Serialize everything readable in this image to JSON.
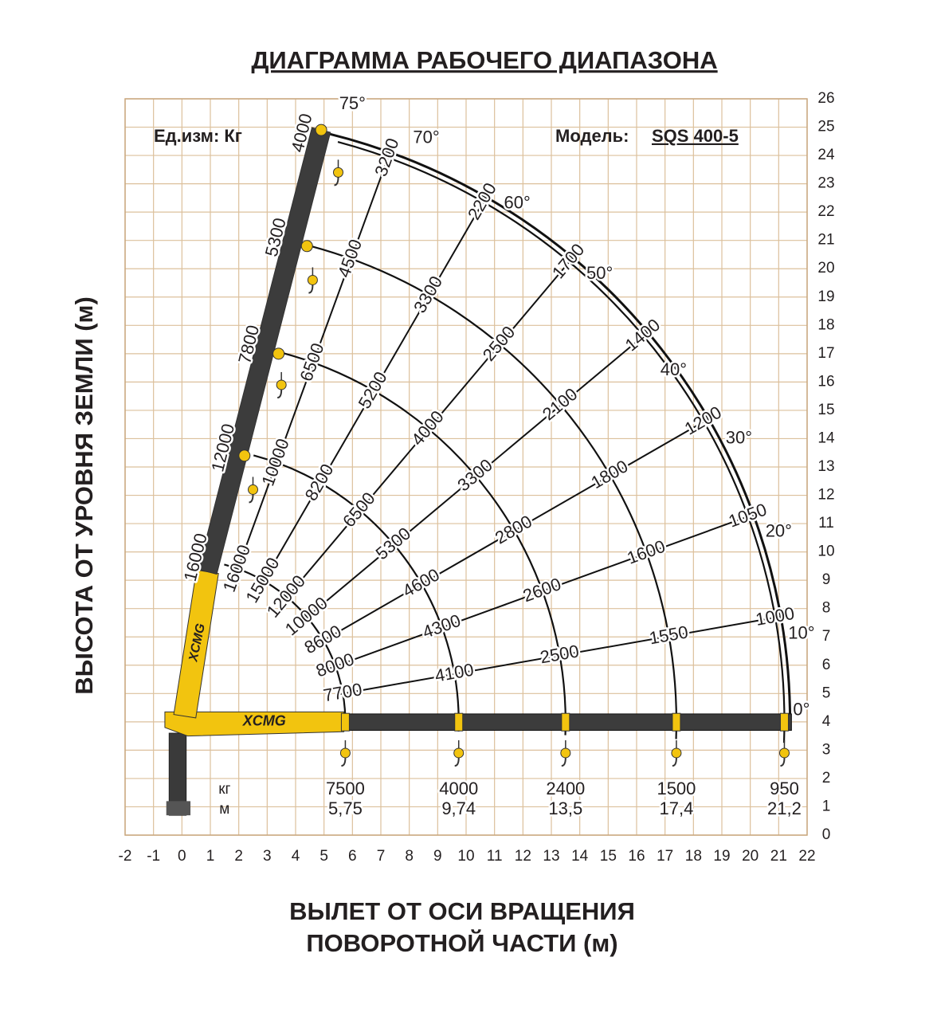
{
  "title": "ДИАГРАММА РАБОЧЕГО ДИАПАЗОНА",
  "unit": "Ед.изм: Кг",
  "model_label": "Модель:",
  "model": "SQS 400-5",
  "y_axis_label": "ВЫСОТА ОТ УРОВНЯ ЗЕМЛИ (м)",
  "x_axis_label": [
    "ВЫЛЕТ ОТ ОСИ ВРАЩЕНИЯ",
    "ПОВОРОТНОЙ ЧАСТИ (м)"
  ],
  "x_ticks": [
    -2,
    -1,
    0,
    1,
    2,
    3,
    4,
    5,
    6,
    7,
    8,
    9,
    10,
    11,
    12,
    13,
    14,
    15,
    16,
    17,
    18,
    19,
    20,
    21,
    22
  ],
  "y_ticks": [
    0,
    1,
    2,
    3,
    4,
    5,
    6,
    7,
    8,
    9,
    10,
    11,
    12,
    13,
    14,
    15,
    16,
    17,
    18,
    19,
    20,
    21,
    22,
    23,
    24,
    25,
    26
  ],
  "angles": [
    "75°",
    "70°",
    "60°",
    "50°",
    "40°",
    "30°",
    "20°",
    "10°",
    "0°"
  ],
  "boom_loads": [
    4000,
    5300,
    7800,
    12000,
    16000
  ],
  "radial_loads": [
    [
      3200,
      4500,
      6500,
      10000,
      16000
    ],
    [
      2200,
      3300,
      5200,
      8200,
      15000
    ],
    [
      1700,
      2500,
      4000,
      6500,
      12000
    ],
    [
      1400,
      2100,
      3300,
      5300,
      10000
    ],
    [
      1200,
      1800,
      2800,
      4600,
      8600
    ],
    [
      1050,
      1600,
      2600,
      4300,
      8000
    ],
    [
      1000,
      1550,
      2500,
      4100,
      7700
    ]
  ],
  "table": {
    "kg_label": "кг",
    "m_label": "м",
    "kg": [
      7500,
      4000,
      2400,
      1500,
      950
    ],
    "m": [
      "5,75",
      "9,74",
      "13,5",
      "17,4",
      "21,2"
    ]
  },
  "brand": "XCMG"
}
